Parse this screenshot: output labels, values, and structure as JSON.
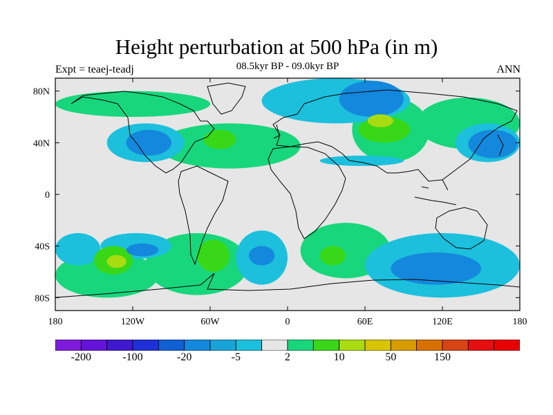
{
  "header": {
    "title": "Height perturbation at 500 hPa (in m)",
    "subtitle": "08.5kyr BP - 09.0kyr BP",
    "left_label": "Expt = teaej-teadj",
    "right_label": "ANN"
  },
  "map": {
    "projection": "cylindrical-equidistant",
    "lon_range": [
      -180,
      180
    ],
    "lat_range": [
      -90,
      90
    ],
    "lat_ticks": [
      "80N",
      "40N",
      "0",
      "40S",
      "80S"
    ],
    "lon_ticks": [
      "180",
      "120W",
      "60W",
      "0",
      "60E",
      "120E",
      "180"
    ],
    "fill_regions": [
      {
        "level": "-20",
        "lon": [
          40,
          90
        ],
        "lat": [
          60,
          88
        ]
      },
      {
        "level": "-20",
        "lon": [
          -125,
          -90
        ],
        "lat": [
          30,
          50
        ]
      },
      {
        "level": "-20",
        "lon": [
          140,
          178
        ],
        "lat": [
          28,
          50
        ]
      },
      {
        "level": "-20",
        "lon": [
          -30,
          -10
        ],
        "lat": [
          -40,
          -55
        ]
      },
      {
        "level": "-20",
        "lon": [
          80,
          150
        ],
        "lat": [
          -45,
          -70
        ]
      },
      {
        "level": "-20",
        "lon": [
          -125,
          -100
        ],
        "lat": [
          -38,
          -48
        ]
      },
      {
        "level": "-5",
        "lon": [
          -20,
          95
        ],
        "lat": [
          55,
          90
        ]
      },
      {
        "level": "-5",
        "lon": [
          -140,
          -80
        ],
        "lat": [
          25,
          55
        ]
      },
      {
        "level": "-5",
        "lon": [
          130,
          180
        ],
        "lat": [
          25,
          55
        ]
      },
      {
        "level": "-5",
        "lon": [
          -180,
          -145
        ],
        "lat": [
          -30,
          -55
        ]
      },
      {
        "level": "-5",
        "lon": [
          -145,
          -90
        ],
        "lat": [
          -30,
          -50
        ]
      },
      {
        "level": "-5",
        "lon": [
          -40,
          0
        ],
        "lat": [
          -28,
          -70
        ]
      },
      {
        "level": "-5",
        "lon": [
          60,
          180
        ],
        "lat": [
          -30,
          -80
        ]
      },
      {
        "level": "-5",
        "lon": [
          25,
          90
        ],
        "lat": [
          22,
          30
        ]
      },
      {
        "level": "2",
        "lon": [
          -180,
          -60
        ],
        "lat": [
          60,
          80
        ]
      },
      {
        "level": "2",
        "lon": [
          -100,
          10
        ],
        "lat": [
          20,
          55
        ]
      },
      {
        "level": "2",
        "lon": [
          100,
          180
        ],
        "lat": [
          35,
          75
        ]
      },
      {
        "level": "2",
        "lon": [
          -180,
          -100
        ],
        "lat": [
          -45,
          -80
        ]
      },
      {
        "level": "2",
        "lon": [
          -110,
          -30
        ],
        "lat": [
          -30,
          -78
        ]
      },
      {
        "level": "2",
        "lon": [
          10,
          80
        ],
        "lat": [
          -22,
          -65
        ]
      },
      {
        "level": "2",
        "lon": [
          50,
          110
        ],
        "lat": [
          25,
          75
        ]
      },
      {
        "level": "10",
        "lon": [
          -150,
          -120
        ],
        "lat": [
          -40,
          -62
        ]
      },
      {
        "level": "10",
        "lon": [
          -70,
          -45
        ],
        "lat": [
          -35,
          -60
        ]
      },
      {
        "level": "10",
        "lon": [
          25,
          45
        ],
        "lat": [
          -40,
          -55
        ]
      },
      {
        "level": "10",
        "lon": [
          55,
          95
        ],
        "lat": [
          40,
          60
        ]
      },
      {
        "level": "10",
        "lon": [
          -65,
          -40
        ],
        "lat": [
          35,
          50
        ]
      },
      {
        "level": "10",
        "lon": [
          -115,
          -100
        ],
        "lat": [
          30,
          44
        ]
      },
      {
        "level": "50",
        "lon": [
          62,
          82
        ],
        "lat": [
          52,
          62
        ]
      },
      {
        "level": "50",
        "lon": [
          -140,
          -125
        ],
        "lat": [
          -47,
          -57
        ]
      }
    ]
  },
  "colorbar": {
    "colors": [
      "#7f1cdb",
      "#6414d8",
      "#4018cf",
      "#2030d8",
      "#1060d4",
      "#1488dc",
      "#18a4d8",
      "#1cc0dc",
      "#e6e6e6",
      "#18d67c",
      "#38d818",
      "#a8dc10",
      "#d8c400",
      "#d89c00",
      "#d87000",
      "#d84414",
      "#e61010",
      "#e80000"
    ],
    "labels": [
      "-200",
      "-100",
      "-20",
      "-5",
      "2",
      "10",
      "50",
      "150"
    ],
    "label_positions_index": [
      1,
      3,
      5,
      7,
      9,
      11,
      13,
      15
    ]
  }
}
